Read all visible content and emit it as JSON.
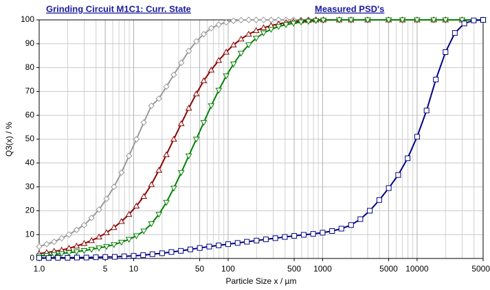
{
  "chart_data": {
    "type": "line",
    "title": "Grinding Circuit M1C1: Curr. State",
    "subtitle": "Measured PSD's",
    "xlabel": "Particle Size x / µm",
    "ylabel": "Q3(x) / %",
    "xlog": true,
    "grid": true,
    "title_color": "#1a1aa0",
    "xlim": [
      1,
      50000
    ],
    "xticks": [
      {
        "value": 1,
        "label": "1.0"
      },
      5,
      10,
      50,
      100,
      500,
      1000,
      5000,
      10000,
      50000
    ],
    "xminor": [
      2,
      3,
      4,
      6,
      7,
      8,
      9,
      20,
      30,
      40,
      60,
      70,
      80,
      90,
      200,
      300,
      400,
      600,
      700,
      800,
      900,
      2000,
      3000,
      4000,
      6000,
      7000,
      8000,
      9000,
      20000,
      30000,
      40000
    ],
    "ylim": [
      0,
      100
    ],
    "yticks": [
      0,
      10,
      20,
      30,
      40,
      50,
      60,
      70,
      80,
      90,
      100
    ],
    "x": [
      1,
      1.2,
      1.44,
      1.73,
      2.07,
      2.49,
      2.99,
      3.58,
      4.3,
      5.16,
      6.19,
      7.43,
      8.92,
      10.7,
      12.8,
      15.4,
      18.5,
      22.2,
      26.6,
      31.9,
      38.3,
      46,
      55.2,
      66.2,
      79.5,
      95.4,
      114,
      137,
      165,
      198,
      237,
      285,
      342,
      410,
      492,
      590,
      708,
      850,
      1020,
      1500,
      2000,
      3000,
      5000,
      7000,
      10000,
      15000,
      20000,
      30000,
      50000
    ],
    "series": [
      {
        "color": "#999999",
        "marker": "diamond",
        "values": [
          5,
          6,
          7,
          8.5,
          10,
          12,
          14,
          17,
          20.5,
          25,
          30,
          36,
          43,
          50,
          57,
          64,
          67,
          72,
          77,
          82,
          87,
          91,
          94,
          96.5,
          98,
          99,
          99.6,
          99.9,
          100,
          100,
          100,
          100,
          100,
          100,
          100,
          100,
          100,
          100,
          100,
          100,
          100,
          100,
          100,
          100,
          100,
          100,
          100,
          100,
          100
        ]
      },
      {
        "color": "#8b0000",
        "marker": "triangle-up",
        "values": [
          2,
          2.5,
          3,
          3.5,
          4.3,
          5.2,
          6.3,
          7.5,
          9,
          10.8,
          13,
          15.5,
          18.5,
          22,
          26,
          31,
          37,
          43.5,
          50,
          56.5,
          63,
          69,
          74.5,
          79,
          83,
          86.5,
          89.5,
          92,
          94,
          95.5,
          96.7,
          97.6,
          98.3,
          98.9,
          99.3,
          99.6,
          99.8,
          100,
          100,
          100,
          100,
          100,
          100,
          100,
          100,
          100,
          100,
          100,
          100
        ]
      },
      {
        "color": "#008000",
        "marker": "triangle-down",
        "values": [
          1,
          1.3,
          1.6,
          2,
          2.4,
          2.8,
          3.3,
          3.8,
          4.4,
          5,
          5.8,
          6.8,
          8,
          9.5,
          11.5,
          14.5,
          18.5,
          23.5,
          29.5,
          36,
          43,
          50,
          57,
          64,
          70.5,
          76.5,
          81.5,
          86,
          89.5,
          92.3,
          94.5,
          96,
          97.2,
          98,
          98.6,
          99.1,
          99.4,
          99.7,
          99.9,
          100,
          100,
          100,
          100,
          100,
          100,
          100,
          100,
          100,
          100
        ]
      },
      {
        "color": "#000080",
        "marker": "square",
        "x": [
          1,
          1.26,
          1.58,
          2,
          2.51,
          3.16,
          3.98,
          5.01,
          6.31,
          7.94,
          10,
          12.6,
          15.8,
          20,
          25.1,
          31.6,
          39.8,
          50.1,
          63.1,
          79.4,
          100,
          126,
          158,
          200,
          251,
          316,
          398,
          501,
          631,
          794,
          1000,
          1260,
          1580,
          2000,
          2510,
          3160,
          3980,
          5010,
          6310,
          7940,
          10000,
          12600,
          15800,
          20000,
          25100,
          31600,
          39800,
          50000
        ],
        "values": [
          0.2,
          0.2,
          0.3,
          0.3,
          0.4,
          0.4,
          0.5,
          0.6,
          0.7,
          0.9,
          1.1,
          1.4,
          1.8,
          2.2,
          2.7,
          3.2,
          3.8,
          4.4,
          5,
          5.5,
          6,
          6.5,
          7,
          7.5,
          8,
          8.5,
          9,
          9.5,
          9.9,
          10.3,
          10.8,
          11.5,
          12.5,
          14,
          16.5,
          20,
          24.5,
          29.5,
          35,
          42,
          51,
          62,
          75,
          86.5,
          94.5,
          98.5,
          99.8,
          100
        ]
      }
    ]
  }
}
